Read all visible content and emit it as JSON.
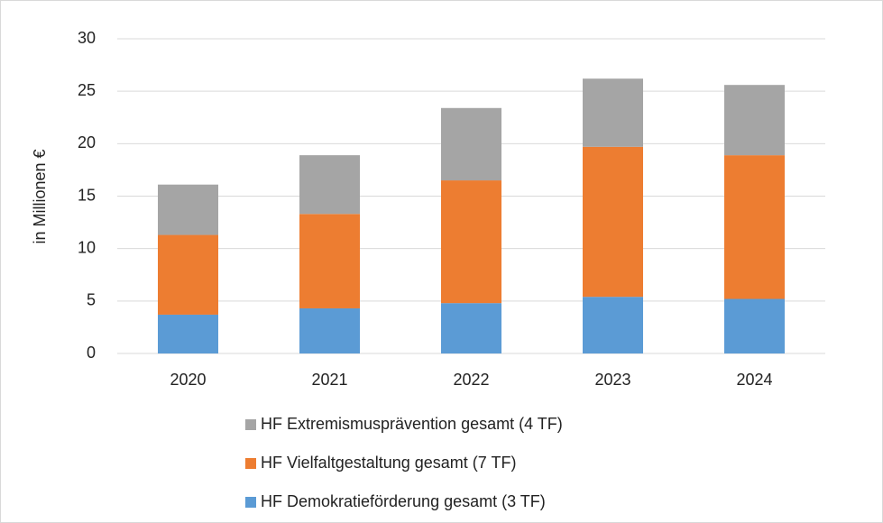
{
  "chart_data": {
    "type": "stacked_bar",
    "y_axis_label": "in Millionen €",
    "categories": [
      "2020",
      "2021",
      "2022",
      "2023",
      "2024"
    ],
    "series": [
      {
        "name": "HF Demokratieförderung gesamt (3 TF)",
        "color": "#5b9bd5",
        "values": [
          3.7,
          4.3,
          4.8,
          5.4,
          5.2
        ]
      },
      {
        "name": "HF Vielfaltgestaltung gesamt (7 TF)",
        "color": "#ed7d31",
        "values": [
          7.6,
          9.0,
          11.7,
          14.3,
          13.7
        ]
      },
      {
        "name": "HF Extremismusprävention gesamt (4 TF)",
        "color": "#a5a5a5",
        "values": [
          4.8,
          5.6,
          6.9,
          6.5,
          6.7
        ]
      }
    ],
    "ylim": [
      0,
      30
    ],
    "yticks": [
      0,
      5,
      10,
      15,
      20,
      25,
      30
    ],
    "grid": true
  }
}
